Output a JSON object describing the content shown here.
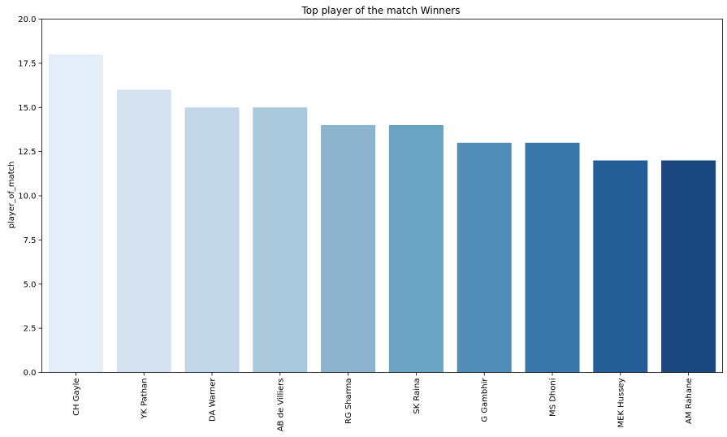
{
  "chart_data": {
    "type": "bar",
    "title": "Top player of the match Winners",
    "xlabel": "",
    "ylabel": "player_of_match",
    "ylim": [
      0,
      20
    ],
    "yticks": [
      "0.0",
      "2.5",
      "5.0",
      "7.5",
      "10.0",
      "12.5",
      "15.0",
      "17.5",
      "20.0"
    ],
    "grid": false,
    "categories": [
      "CH Gayle",
      "YK Pathan",
      "DA Warner",
      "AB de Villiers",
      "RG Sharma",
      "SK Raina",
      "G Gambhir",
      "MS Dhoni",
      "MEK Hussey",
      "AM Rahane"
    ],
    "values": [
      18,
      16,
      15,
      15,
      14,
      14,
      13,
      13,
      12,
      12
    ],
    "colors": [
      "#e4eef8",
      "#d5e3f0",
      "#c3d7e8",
      "#a9c8dc",
      "#8bb5cf",
      "#6ba3c4",
      "#508db7",
      "#3875a8",
      "#255e96",
      "#1a477d"
    ]
  }
}
